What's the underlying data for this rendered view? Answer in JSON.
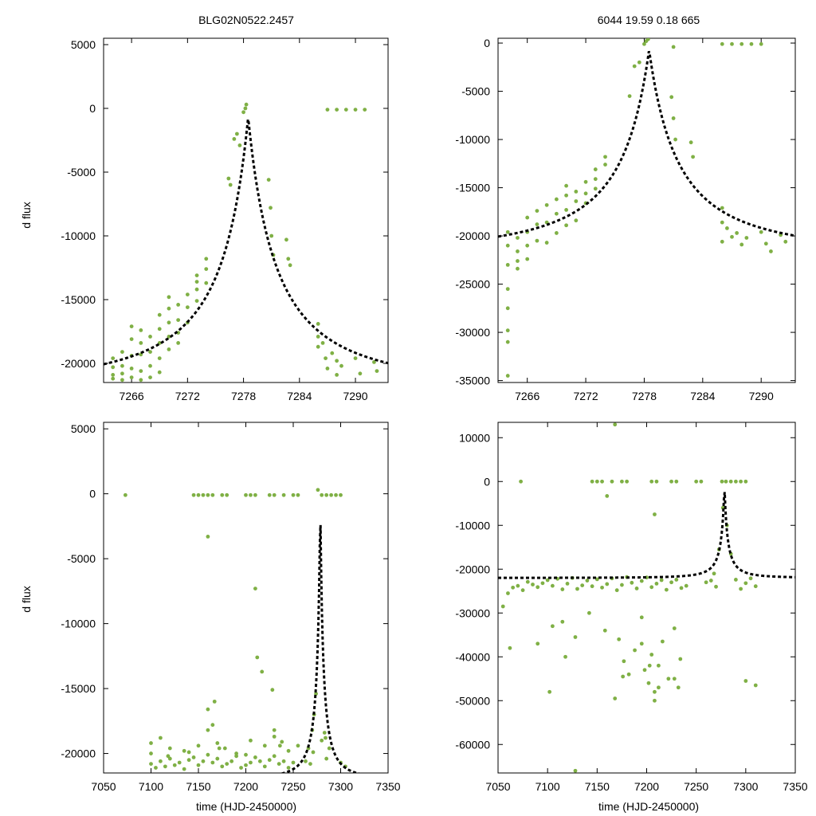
{
  "figure": {
    "title_left": "BLG02N0522.2457",
    "title_right": "6044  19.59  0.18  665",
    "ylabel_top": "d flux",
    "ylabel_bottom": "d flux",
    "xlabel_bottom_left": "time (HJD-2450000)",
    "xlabel_bottom_right": "time (HJD-2450000)",
    "point_color": "#7fb045",
    "model_color": "#000000"
  },
  "chart_data": [
    {
      "id": "top-left",
      "type": "scatter",
      "title": "BLG02N0522.2457",
      "xlabel": "",
      "ylabel": "d flux",
      "xlim": [
        7263.0,
        7293.5
      ],
      "ylim": [
        -21500,
        5500
      ],
      "xticks": [
        7266,
        7272,
        7278,
        7284,
        7290
      ],
      "yticks": [
        5000,
        0,
        -5000,
        -10000,
        -15000,
        -20000
      ],
      "model": {
        "t0": 7278.5,
        "peak": -700,
        "base": -22000,
        "tE": 1.6
      },
      "series": [
        {
          "name": "observations",
          "x": [
            7264,
            7264,
            7264,
            7264,
            7265,
            7265,
            7265,
            7265,
            7266,
            7266,
            7266,
            7266,
            7266,
            7267,
            7267,
            7267,
            7267,
            7267,
            7268,
            7268,
            7268,
            7268,
            7269,
            7269,
            7269,
            7269,
            7269,
            7270,
            7270,
            7270,
            7270,
            7270,
            7271,
            7271,
            7271,
            7271,
            7272,
            7272,
            7272,
            7273,
            7273,
            7273,
            7273,
            7274,
            7274,
            7274,
            7276.4,
            7276.6,
            7277,
            7277.3,
            7277.6,
            7278,
            7278.2,
            7278.3,
            7280.7,
            7280.9,
            7281,
            7281.2,
            7282.6,
            7282.8,
            7283,
            7286,
            7286,
            7286,
            7286.5,
            7286.8,
            7287,
            7287.5,
            7288,
            7288,
            7288.5,
            7290,
            7290.5,
            7292,
            7292.3,
            7287,
            7288,
            7289,
            7290,
            7291
          ],
          "y": [
            -19600,
            -20300,
            -20900,
            -21200,
            -19100,
            -20200,
            -20800,
            -21300,
            -17100,
            -18100,
            -19400,
            -20400,
            -21100,
            -17400,
            -18400,
            -19300,
            -20600,
            -21300,
            -17900,
            -19100,
            -20200,
            -21100,
            -16200,
            -17300,
            -18400,
            -19600,
            -20700,
            -14800,
            -15700,
            -16800,
            -17900,
            -18900,
            -15400,
            -16600,
            -17600,
            -18400,
            -14600,
            -15600,
            -16800,
            -13100,
            -14200,
            -15100,
            -13600,
            -11800,
            -12600,
            -13700,
            -5500,
            -6000,
            -2400,
            -2000,
            -2900,
            -300,
            0,
            300,
            -5600,
            -7800,
            -10000,
            -11500,
            -10300,
            -11800,
            -12300,
            -16900,
            -17900,
            -18700,
            -18400,
            -19600,
            -20400,
            -19200,
            -19800,
            -20900,
            -20200,
            -19600,
            -20800,
            -19900,
            -20600,
            -100,
            -100,
            -100,
            -100,
            -100
          ]
        }
      ]
    },
    {
      "id": "top-right",
      "type": "scatter",
      "title": "6044  19.59  0.18  665",
      "xlabel": "",
      "ylabel": "",
      "xlim": [
        7263.0,
        7293.5
      ],
      "ylim": [
        -35200,
        500
      ],
      "xticks": [
        7266,
        7272,
        7278,
        7284,
        7290
      ],
      "yticks": [
        0,
        -5000,
        -10000,
        -15000,
        -20000,
        -25000,
        -30000,
        -35000
      ],
      "model": {
        "t0": 7278.5,
        "peak": -700,
        "base": -22000,
        "tE": 1.6
      },
      "series": [
        {
          "name": "observations",
          "x": [
            7264,
            7264,
            7264,
            7264,
            7264,
            7264,
            7264,
            7264,
            7265,
            7265,
            7265,
            7265,
            7266,
            7266,
            7266,
            7266,
            7267,
            7267,
            7267,
            7268,
            7268,
            7268,
            7269,
            7269,
            7269,
            7270,
            7270,
            7270,
            7270,
            7271,
            7271,
            7271,
            7272,
            7272,
            7272,
            7273,
            7273,
            7273,
            7274,
            7274,
            7276.5,
            7277,
            7277.5,
            7278,
            7278.2,
            7278.4,
            7280.8,
            7281,
            7281.2,
            7282.8,
            7283,
            7286,
            7286,
            7286,
            7286.5,
            7287,
            7287.5,
            7288,
            7288.5,
            7290,
            7290.5,
            7291,
            7292,
            7292.5,
            7286,
            7287,
            7288,
            7289,
            7290,
            7281
          ],
          "y": [
            -19600,
            -21000,
            -23000,
            -25500,
            -27500,
            -29800,
            -31000,
            -34500,
            -20200,
            -21600,
            -22600,
            -23400,
            -18100,
            -19600,
            -21000,
            -22400,
            -17400,
            -18800,
            -20500,
            -16800,
            -18600,
            -20700,
            -16200,
            -17700,
            -19700,
            -14800,
            -15800,
            -17300,
            -18900,
            -15400,
            -16400,
            -18400,
            -14400,
            -15600,
            -16600,
            -13100,
            -14100,
            -15100,
            -11800,
            -12600,
            -5500,
            -2400,
            -2000,
            -100,
            200,
            400,
            -5600,
            -7800,
            -10000,
            -10300,
            -11800,
            -17100,
            -18600,
            -20600,
            -19200,
            -20100,
            -19700,
            -20900,
            -20200,
            -19600,
            -20800,
            -21600,
            -19900,
            -20600,
            -100,
            -100,
            -100,
            -100,
            -100,
            -400
          ]
        }
      ]
    },
    {
      "id": "bottom-left",
      "type": "scatter",
      "title": "",
      "xlabel": "time (HJD-2450000)",
      "ylabel": "d flux",
      "xlim": [
        7050,
        7350
      ],
      "ylim": [
        -21500,
        5500
      ],
      "xticks": [
        7050,
        7100,
        7150,
        7200,
        7250,
        7300,
        7350
      ],
      "yticks": [
        5000,
        0,
        -5000,
        -10000,
        -15000,
        -20000
      ],
      "model": {
        "t0": 7278.5,
        "peak": -700,
        "base": -22000,
        "tE": 1.6
      },
      "series": [
        {
          "name": "observations",
          "x": [
            7073,
            7145,
            7150,
            7155,
            7160,
            7165,
            7175,
            7180,
            7200,
            7205,
            7210,
            7225,
            7230,
            7240,
            7250,
            7255,
            7276,
            7280,
            7285,
            7290,
            7295,
            7300,
            7160,
            7210,
            7212,
            7217,
            7228,
            7100,
            7105,
            7110,
            7115,
            7120,
            7125,
            7130,
            7135,
            7140,
            7145,
            7150,
            7155,
            7160,
            7165,
            7170,
            7175,
            7180,
            7185,
            7190,
            7195,
            7200,
            7205,
            7210,
            7215,
            7220,
            7225,
            7230,
            7235,
            7240,
            7245,
            7250,
            7100,
            7110,
            7120,
            7135,
            7150,
            7160,
            7165,
            7170,
            7178,
            7190,
            7205,
            7220,
            7230,
            7238,
            7245,
            7255,
            7160,
            7167,
            7230,
            7100,
            7118,
            7140,
            7172,
            7200,
            7236,
            7263,
            7266,
            7270,
            7272,
            7274,
            7280,
            7283,
            7285,
            7288,
            7268,
            7271,
            7284,
            7300,
            7305
          ],
          "y": [
            -100,
            -100,
            -100,
            -100,
            -100,
            -100,
            -100,
            -100,
            -100,
            -100,
            -100,
            -100,
            -100,
            -100,
            -100,
            -100,
            300,
            -100,
            -100,
            -100,
            -100,
            -100,
            -3300,
            -7300,
            -12600,
            -13700,
            -15100,
            -20800,
            -21100,
            -20600,
            -21000,
            -20400,
            -20900,
            -20700,
            -21200,
            -20500,
            -20300,
            -20900,
            -20600,
            -20100,
            -20700,
            -20400,
            -21000,
            -20800,
            -20600,
            -20200,
            -21100,
            -20900,
            -20700,
            -20300,
            -20600,
            -21000,
            -20500,
            -20200,
            -20800,
            -20600,
            -21100,
            -20700,
            -19200,
            -18800,
            -19600,
            -19800,
            -19400,
            -18200,
            -17800,
            -19200,
            -19600,
            -20000,
            -19000,
            -19400,
            -18700,
            -19100,
            -19800,
            -19400,
            -16600,
            -16000,
            -18200,
            -20000,
            -20200,
            -19900,
            -19600,
            -20100,
            -19400,
            -20600,
            -19600,
            -18200,
            -17000,
            -15400,
            -19000,
            -18400,
            -20400,
            -19600,
            -20800,
            -19900,
            -18800,
            -20700,
            -21000
          ]
        }
      ]
    },
    {
      "id": "bottom-right",
      "type": "scatter",
      "title": "",
      "xlabel": "time (HJD-2450000)",
      "ylabel": "",
      "xlim": [
        7050,
        7350
      ],
      "ylim": [
        -66500,
        13500
      ],
      "xticks": [
        7050,
        7100,
        7150,
        7200,
        7250,
        7300,
        7350
      ],
      "yticks": [
        10000,
        0,
        -10000,
        -20000,
        -30000,
        -40000,
        -50000,
        -60000
      ],
      "model": {
        "t0": 7278.5,
        "peak": -700,
        "base": -22000,
        "tE": 1.6
      },
      "series": [
        {
          "name": "observations",
          "x": [
            7073,
            7145,
            7150,
            7155,
            7165,
            7175,
            7180,
            7205,
            7210,
            7225,
            7230,
            7250,
            7255,
            7276,
            7280,
            7285,
            7290,
            7295,
            7300,
            7168,
            7160,
            7208,
            7055,
            7060,
            7065,
            7070,
            7075,
            7080,
            7085,
            7090,
            7095,
            7100,
            7105,
            7110,
            7115,
            7120,
            7125,
            7130,
            7135,
            7140,
            7145,
            7150,
            7155,
            7160,
            7165,
            7170,
            7175,
            7180,
            7185,
            7190,
            7195,
            7200,
            7205,
            7210,
            7215,
            7220,
            7225,
            7230,
            7235,
            7240,
            7260,
            7265,
            7270,
            7290,
            7295,
            7300,
            7305,
            7310,
            7062,
            7090,
            7105,
            7115,
            7128,
            7142,
            7158,
            7172,
            7177,
            7182,
            7188,
            7195,
            7198,
            7202,
            7205,
            7208,
            7212,
            7216,
            7222,
            7228,
            7234,
            7102,
            7118,
            7168,
            7176,
            7203,
            7208,
            7212,
            7195,
            7228,
            7232,
            7128,
            7300,
            7310,
            7273,
            7277,
            7281,
            7285,
            7268
          ],
          "y": [
            0,
            0,
            0,
            0,
            0,
            0,
            0,
            0,
            0,
            0,
            0,
            0,
            0,
            0,
            0,
            0,
            0,
            0,
            0,
            13000,
            -3300,
            -7500,
            -28500,
            -25500,
            -24200,
            -23800,
            -24800,
            -22900,
            -23500,
            -24100,
            -23200,
            -22500,
            -23800,
            -22200,
            -24600,
            -23300,
            -22000,
            -24500,
            -23700,
            -22600,
            -23900,
            -22300,
            -24200,
            -23400,
            -22100,
            -24800,
            -23600,
            -21800,
            -23100,
            -24400,
            -22700,
            -21900,
            -24100,
            -23300,
            -22500,
            -24700,
            -23000,
            -22400,
            -24300,
            -23800,
            -23000,
            -22600,
            -24000,
            -22400,
            -24500,
            -23200,
            -22100,
            -23900,
            -38000,
            -37000,
            -33000,
            -32000,
            -35500,
            -30000,
            -34000,
            -36000,
            -41000,
            -44000,
            -38500,
            -31000,
            -43000,
            -46000,
            -39500,
            -48000,
            -42000,
            -36500,
            -45000,
            -33500,
            -40500,
            -48000,
            -40000,
            -49500,
            -44500,
            -42000,
            -50000,
            -47000,
            -37000,
            -45000,
            -47000,
            -66000,
            -45500,
            -46500,
            -15500,
            -6000,
            -10000,
            -16500,
            -21000
          ]
        }
      ]
    }
  ]
}
